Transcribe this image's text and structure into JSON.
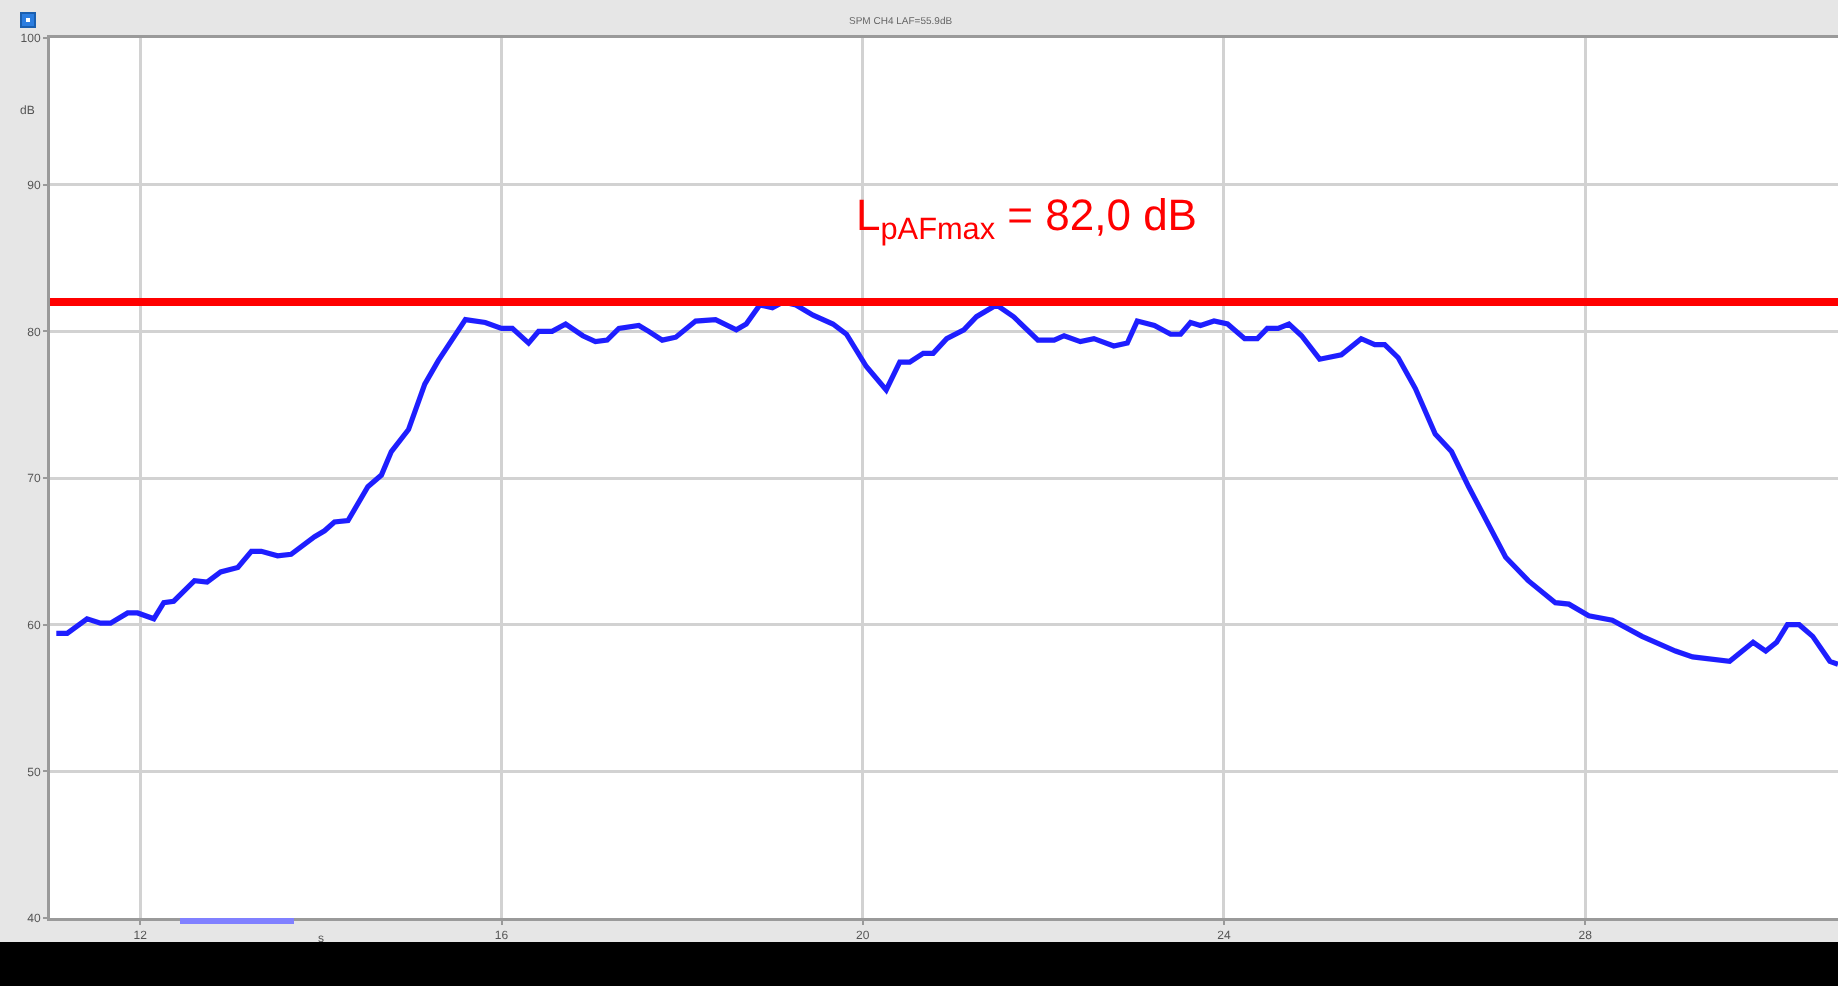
{
  "chart_data": {
    "type": "line",
    "title": "SPM CH4 LAF=55.9dB",
    "xlabel": "s",
    "ylabel": "dB",
    "x": [
      11.07,
      11.19,
      11.41,
      11.56,
      11.67,
      11.86,
      11.97,
      12.15,
      12.26,
      12.37,
      12.6,
      12.74,
      12.89,
      13.08,
      13.23,
      13.34,
      13.52,
      13.67,
      13.93,
      14.04,
      14.15,
      14.3,
      14.52,
      14.67,
      14.78,
      14.97,
      15.15,
      15.3,
      15.6,
      15.82,
      16.0,
      16.12,
      16.3,
      16.41,
      16.56,
      16.71,
      16.9,
      17.04,
      17.17,
      17.3,
      17.52,
      17.63,
      17.78,
      17.93,
      18.15,
      18.37,
      18.6,
      18.71,
      18.86,
      19.0,
      19.12,
      19.26,
      19.45,
      19.67,
      19.82,
      20.04,
      20.26,
      20.41,
      20.52,
      20.67,
      20.78,
      20.93,
      21.12,
      21.26,
      21.48,
      21.67,
      21.94,
      22.12,
      22.23,
      22.41,
      22.56,
      22.78,
      22.93,
      23.04,
      23.23,
      23.41,
      23.52,
      23.63,
      23.74,
      23.89,
      24.04,
      24.23,
      24.37,
      24.48,
      24.6,
      24.72,
      24.86,
      25.06,
      25.3,
      25.52,
      25.67,
      25.78,
      25.93,
      26.12,
      26.34,
      26.52,
      26.71,
      27.12,
      27.37,
      27.67,
      27.82,
      28.04,
      28.3,
      28.63,
      29.0,
      29.19,
      29.6,
      29.86,
      30.0,
      30.12,
      30.24,
      30.37,
      30.52,
      30.71,
      30.8
    ],
    "series": [
      {
        "color": "#1e1eff",
        "values": [
          59.4,
          59.4,
          60.4,
          60.1,
          60.1,
          60.8,
          60.8,
          60.4,
          61.5,
          61.6,
          63.0,
          62.9,
          63.6,
          63.9,
          65.0,
          65.0,
          64.7,
          64.8,
          66.0,
          66.4,
          67.0,
          67.1,
          69.4,
          70.2,
          71.8,
          73.3,
          76.4,
          78.0,
          80.8,
          80.6,
          80.2,
          80.2,
          79.2,
          80.0,
          80.0,
          80.5,
          79.7,
          79.3,
          79.4,
          80.2,
          80.4,
          80.0,
          79.4,
          79.6,
          80.7,
          80.8,
          80.1,
          80.5,
          81.8,
          81.6,
          82.0,
          81.8,
          81.1,
          80.5,
          79.8,
          77.6,
          76.0,
          77.9,
          77.9,
          78.5,
          78.5,
          79.5,
          80.1,
          81.0,
          81.8,
          81.0,
          79.4,
          79.4,
          79.7,
          79.3,
          79.5,
          79.0,
          79.2,
          80.7,
          80.4,
          79.8,
          79.8,
          80.6,
          80.4,
          80.7,
          80.5,
          79.5,
          79.5,
          80.2,
          80.2,
          80.5,
          79.7,
          78.1,
          78.4,
          79.5,
          79.1,
          79.1,
          78.2,
          76.1,
          73.0,
          71.8,
          69.4,
          64.6,
          63.0,
          61.5,
          61.4,
          60.6,
          60.3,
          59.2,
          58.2,
          57.8,
          57.5,
          58.8,
          58.2,
          58.8,
          60.0,
          60.0,
          59.2,
          57.5,
          57.3
        ]
      }
    ],
    "xlim": [
      11,
      30.8
    ],
    "ylim": [
      40,
      100
    ],
    "xticks": [
      12,
      16,
      20,
      24,
      28
    ],
    "yticks": [
      40,
      50,
      60,
      70,
      80,
      90,
      100
    ],
    "grid": true,
    "ref_lines": [
      {
        "axis": "y",
        "value": 82.0,
        "label": "L$_{pAFmax}$ = 82,0 dB",
        "color": "#ff0000"
      }
    ]
  }
}
